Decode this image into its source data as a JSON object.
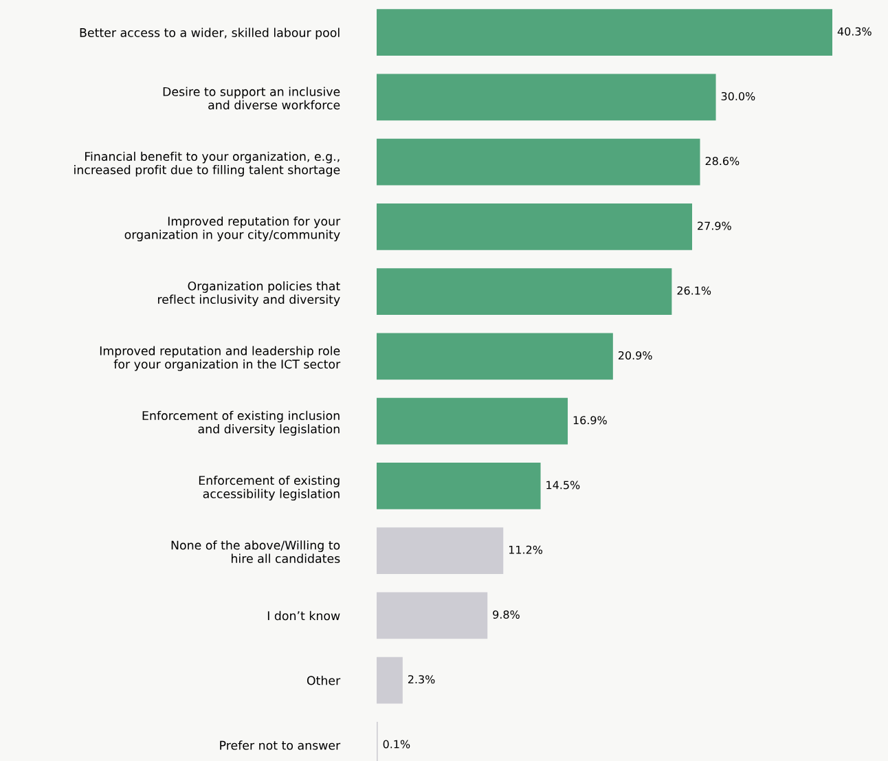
{
  "chart_data": {
    "type": "bar",
    "orientation": "horizontal",
    "data_labels": true,
    "grid": false,
    "legend": false,
    "categories": [
      "Better access to a wider, skilled labour pool",
      "Desire to support an inclusive\nand diverse workforce",
      "Financial benefit to your organization, e.g.,\nincreased profit due to filling talent shortage",
      "Improved reputation for your\norganization in your city/community",
      "Organization policies that\nreflect inclusivity and diversity",
      "Improved reputation and leadership role\nfor your organization in the ICT sector",
      "Enforcement of existing inclusion\nand diversity legislation",
      "Enforcement of existing\naccessibility legislation",
      "None of the above/Willing to\nhire all candidates",
      "I don’t know",
      "Other",
      "Prefer not to answer"
    ],
    "values": [
      40.3,
      30.0,
      28.6,
      27.9,
      26.1,
      20.9,
      16.9,
      14.5,
      11.2,
      9.8,
      2.3,
      0.1
    ],
    "value_labels": [
      "40.3%",
      "30.0%",
      "28.6%",
      "27.9%",
      "26.1%",
      "20.9%",
      "16.9%",
      "14.5%",
      "11.2%",
      "9.8%",
      "2.3%",
      "0.1%"
    ],
    "colors": [
      "#52a57c",
      "#52a57c",
      "#52a57c",
      "#52a57c",
      "#52a57c",
      "#52a57c",
      "#52a57c",
      "#52a57c",
      "#cdccd3",
      "#cdccd3",
      "#cdccd3",
      "#cdccd3"
    ]
  }
}
